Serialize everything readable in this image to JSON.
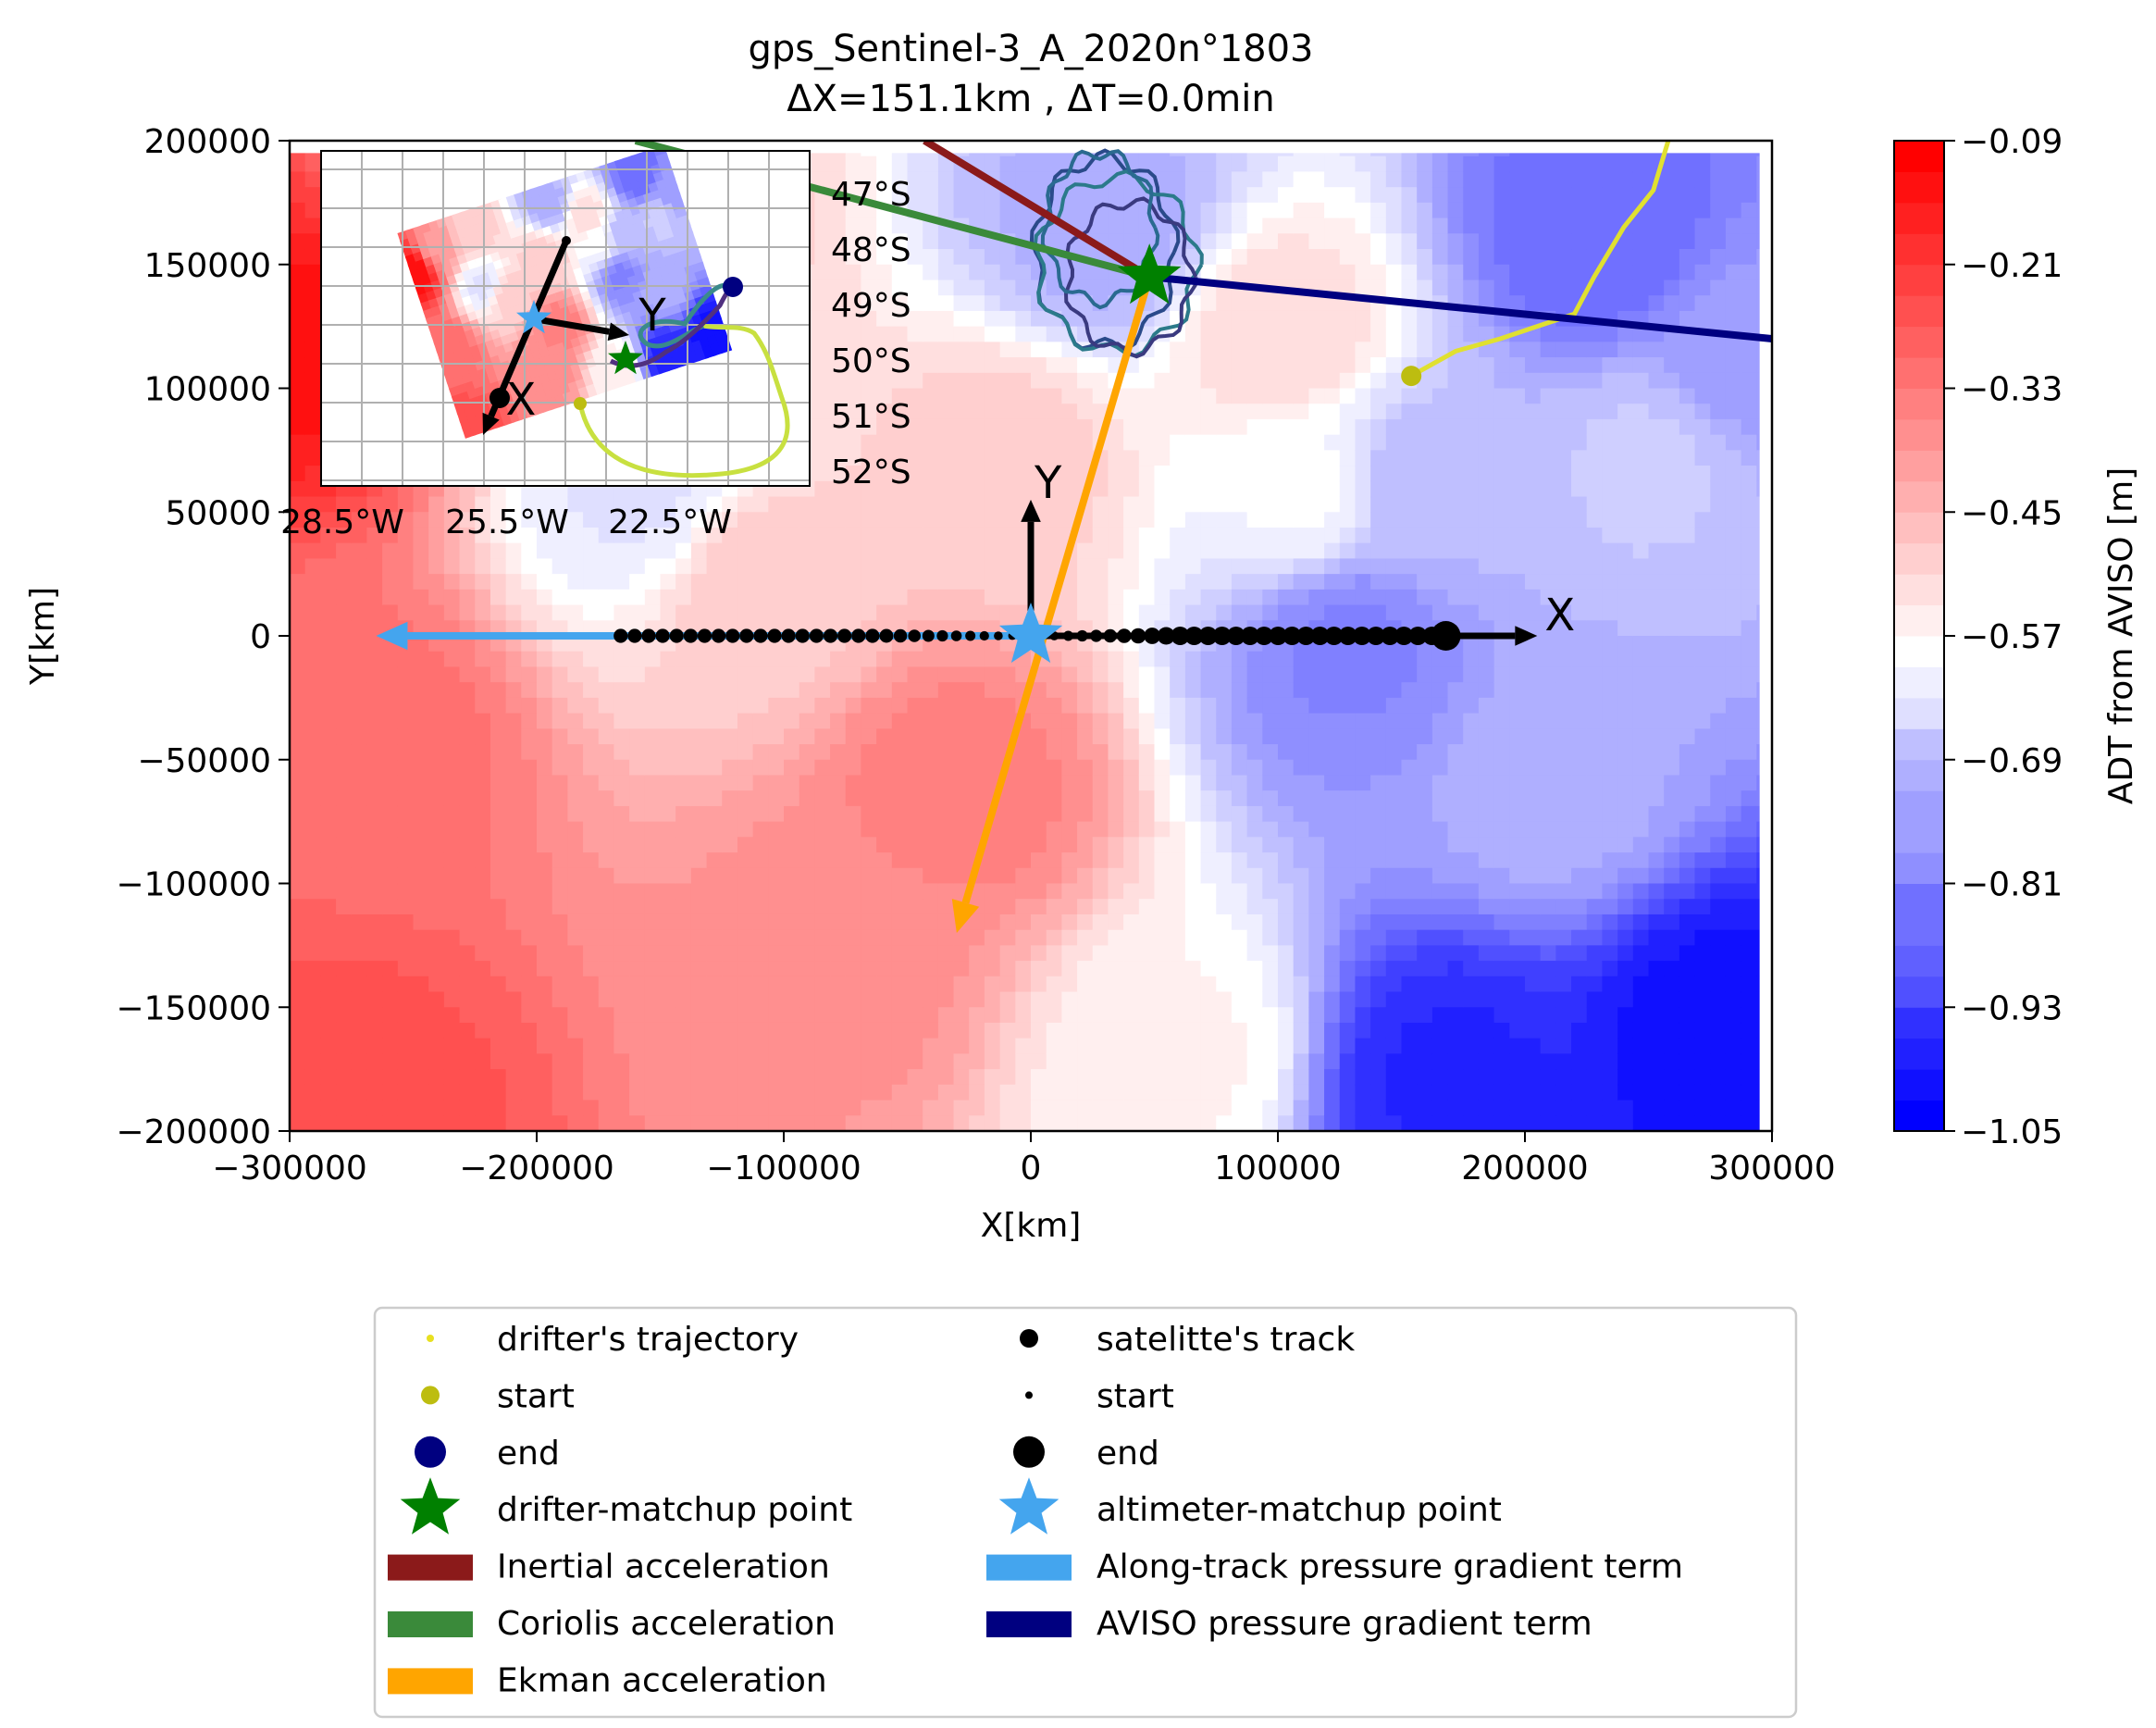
{
  "chart_data": {
    "type": "contour",
    "title": "gps_Sentinel-3_A_2020n°1803",
    "subtitle": "ΔX=151.1km , ΔT=0.0min",
    "xlabel": "X[km]",
    "ylabel": "Y[km]",
    "xlim": [
      -300000,
      300000
    ],
    "ylim": [
      -200000,
      200000
    ],
    "xticks": [
      "−300000",
      "−200000",
      "−100000",
      "0",
      "100000",
      "200000",
      "300000"
    ],
    "yticks": [
      "−200000",
      "−150000",
      "−100000",
      "−50000",
      "0",
      "50000",
      "100000",
      "150000",
      "200000"
    ],
    "colorbar": {
      "label": "ADT from AVISO [m]",
      "range": [
        -1.05,
        -0.09
      ],
      "ticks": [
        "−1.05",
        "−0.93",
        "−0.81",
        "−0.69",
        "−0.57",
        "−0.45",
        "−0.33",
        "−0.21",
        "−0.09"
      ],
      "low_color": "#0000ff",
      "mid_color": "#ffffff",
      "high_color": "#ff0000"
    },
    "field_points": [
      {
        "x": -280000,
        "y": -190000,
        "adt": -0.24
      },
      {
        "x": -290000,
        "y": 120000,
        "adt": -0.12
      },
      {
        "x": -270000,
        "y": -40000,
        "adt": -0.3
      },
      {
        "x": -230000,
        "y": 150000,
        "adt": -0.38
      },
      {
        "x": -150000,
        "y": 160000,
        "adt": -0.48
      },
      {
        "x": -160000,
        "y": 60000,
        "adt": -0.62
      },
      {
        "x": -110000,
        "y": 20000,
        "adt": -0.48
      },
      {
        "x": -30000,
        "y": -60000,
        "adt": -0.33
      },
      {
        "x": -80000,
        "y": -130000,
        "adt": -0.36
      },
      {
        "x": -10000,
        "y": 70000,
        "adt": -0.48
      },
      {
        "x": 30000,
        "y": 165000,
        "adt": -0.72
      },
      {
        "x": 100000,
        "y": 120000,
        "adt": -0.5
      },
      {
        "x": 60000,
        "y": -170000,
        "adt": -0.55
      },
      {
        "x": 110000,
        "y": 60000,
        "adt": -0.58
      },
      {
        "x": 130000,
        "y": -5000,
        "adt": -0.8
      },
      {
        "x": 160000,
        "y": 60000,
        "adt": -0.7
      },
      {
        "x": 230000,
        "y": 160000,
        "adt": -0.85
      },
      {
        "x": 210000,
        "y": -60000,
        "adt": -0.72
      },
      {
        "x": 250000,
        "y": 70000,
        "adt": -0.67
      },
      {
        "x": 170000,
        "y": -180000,
        "adt": -0.98
      },
      {
        "x": 280000,
        "y": -160000,
        "adt": -1.02
      },
      {
        "x": 290000,
        "y": 110000,
        "adt": -0.75
      }
    ],
    "drifter_trajectory": [
      [
        154000,
        105000
      ],
      [
        172000,
        115000
      ],
      [
        190000,
        120000
      ],
      [
        205000,
        125000
      ],
      [
        220000,
        130000
      ],
      [
        228000,
        145000
      ],
      [
        240000,
        165000
      ],
      [
        252000,
        180000
      ],
      [
        258000,
        200000
      ]
    ],
    "drifter_start": [
      154000,
      105000
    ],
    "drifter_matchup_point": [
      48000,
      145000
    ],
    "drifter_loops": [
      {
        "cx": 30000,
        "cy": 155000,
        "rx": 28000,
        "ry": 38000
      },
      {
        "cx": 35000,
        "cy": 150000,
        "rx": 32000,
        "ry": 35000
      },
      {
        "cx": 40000,
        "cy": 145000,
        "rx": 25000,
        "ry": 30000
      },
      {
        "cx": 28000,
        "cy": 165000,
        "rx": 22000,
        "ry": 30000
      }
    ],
    "satellite_track": {
      "x_start": -166000,
      "x_end": 168000,
      "y": 0,
      "n_points": 60
    },
    "altimeter_matchup_point": [
      0,
      0
    ],
    "local_axes": {
      "origin": [
        0,
        0
      ],
      "x_end": [
        205000,
        0
      ],
      "y_end": [
        0,
        55000
      ],
      "x_label": "X",
      "y_label": "Y"
    },
    "vectors": [
      {
        "name": "Inertial acceleration",
        "color": "#8b1a1a",
        "from": [
          48000,
          145000
        ],
        "to": [
          -43000,
          200000
        ]
      },
      {
        "name": "Coriolis acceleration",
        "color": "#3a8a3a",
        "from": [
          48000,
          145000
        ],
        "to": [
          -160000,
          200000
        ]
      },
      {
        "name": "Ekman acceleration",
        "color": "#ffa500",
        "from": [
          48000,
          145000
        ],
        "to": [
          -30000,
          -120000
        ]
      },
      {
        "name": "Along-track pressure gradient term",
        "color": "#44a5ee",
        "from": [
          0,
          0
        ],
        "to": [
          -265000,
          0
        ]
      },
      {
        "name": "AVISO pressure gradient term",
        "color": "#000080",
        "from": [
          48000,
          145000
        ],
        "to": [
          300000,
          120000
        ]
      }
    ],
    "inset": {
      "lat_labels": [
        "47°S",
        "48°S",
        "49°S",
        "50°S",
        "51°S",
        "52°S"
      ],
      "lon_labels": [
        "28.5°W",
        "25.5°W",
        "22.5°W"
      ],
      "axis_labels": {
        "x": "X",
        "y": "Y"
      }
    },
    "legend": {
      "placement": "below",
      "items": [
        {
          "label": "drifter's trajectory",
          "marker": "small-dot",
          "color": "#e8e020"
        },
        {
          "label": "satelitte's track",
          "marker": "dot",
          "color": "#000000"
        },
        {
          "label": "start",
          "marker": "dot",
          "color": "#bdbd10"
        },
        {
          "label": "start",
          "marker": "small-dot",
          "color": "#000000"
        },
        {
          "label": "end",
          "marker": "big-dot",
          "color": "#000080"
        },
        {
          "label": "end",
          "marker": "big-dot",
          "color": "#000000"
        },
        {
          "label": "drifter-matchup point",
          "marker": "star",
          "color": "#008000"
        },
        {
          "label": "altimeter-matchup point",
          "marker": "star",
          "color": "#44a5ee"
        },
        {
          "label": "Inertial acceleration",
          "marker": "patch",
          "color": "#8b1a1a"
        },
        {
          "label": "Along-track pressure gradient term",
          "marker": "patch",
          "color": "#44a5ee"
        },
        {
          "label": "Coriolis acceleration",
          "marker": "patch",
          "color": "#3a8a3a"
        },
        {
          "label": "AVISO pressure gradient term",
          "marker": "patch",
          "color": "#000080"
        },
        {
          "label": "Ekman acceleration",
          "marker": "patch",
          "color": "#ffa500"
        }
      ]
    }
  }
}
